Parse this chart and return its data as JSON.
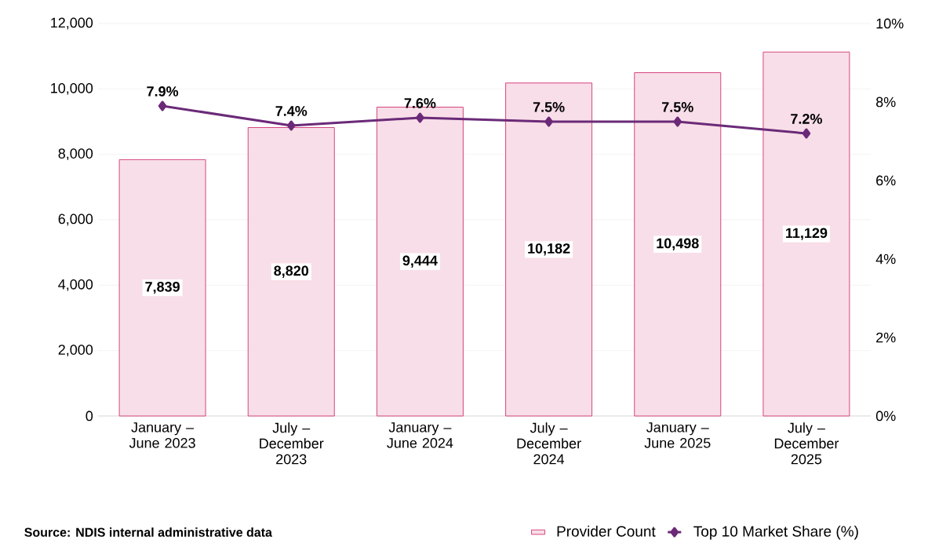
{
  "chart_data": {
    "type": "bar",
    "categories": [
      "January – June 2023",
      "July – December 2023",
      "January – June 2024",
      "July – December 2024",
      "January – June 2025",
      "July – December 2025"
    ],
    "series": [
      {
        "name": "Provider Count",
        "color": "#d6457f",
        "values": [
          7839,
          8820,
          9444,
          10182,
          10498,
          11129
        ],
        "value_labels": [
          "7,839",
          "8,820",
          "9,444",
          "10,182",
          "10,498",
          "11,129"
        ]
      },
      {
        "name": "Top 10 Market Share (%)",
        "type": "line",
        "axis": "y2",
        "color": "#6b2a78",
        "marker": "diamond",
        "values": [
          7.9,
          7.4,
          7.6,
          7.5,
          7.5,
          7.2
        ],
        "value_labels": [
          "7.9%",
          "7.4%",
          "7.6%",
          "7.5%",
          "7.5%",
          "7.2%"
        ]
      }
    ],
    "ylim": [
      0,
      12000
    ],
    "yticks": [
      {
        "value": 0,
        "label": "0"
      },
      {
        "value": 2000,
        "label": "2,000"
      },
      {
        "value": 4000,
        "label": "4,000"
      },
      {
        "value": 6000,
        "label": "6,000"
      },
      {
        "value": 8000,
        "label": "8,000"
      },
      {
        "value": 10000,
        "label": "10,000"
      },
      {
        "value": 12000,
        "label": "12,000"
      }
    ],
    "y2lim": [
      0,
      10
    ],
    "y2ticks": [
      {
        "value": 0,
        "label": "0%"
      },
      {
        "value": 2,
        "label": "2%"
      },
      {
        "value": 4,
        "label": "4%"
      },
      {
        "value": 6,
        "label": "6%"
      },
      {
        "value": 8,
        "label": "8%"
      },
      {
        "value": 10,
        "label": "10%"
      }
    ],
    "grid": "y",
    "legend": "bottom",
    "annotations": [
      "Source: NDIS internal administrative data"
    ]
  }
}
